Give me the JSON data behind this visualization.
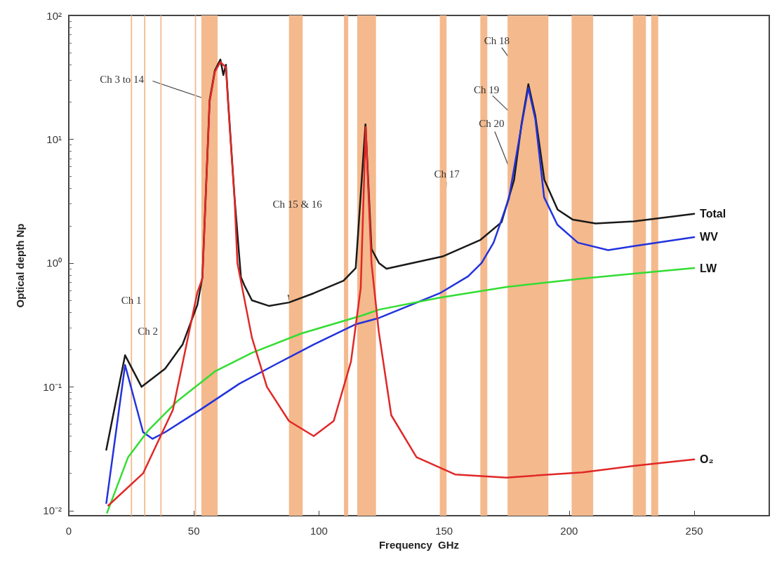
{
  "chart_data": {
    "type": "line",
    "xlabel": "Frequency  GHz",
    "ylabel": "Optical depth Np",
    "log": "y",
    "legend": false,
    "grid": false,
    "marker": "none",
    "line_style": "solid",
    "xlim": [
      0,
      280
    ],
    "xticks": [
      0,
      50,
      100,
      150,
      200,
      250
    ],
    "ylim": [
      0.0091,
      100
    ],
    "yticks": [
      {
        "value": 0.01,
        "label": "10⁻²"
      },
      {
        "value": 0.1,
        "label": "10⁻¹"
      },
      {
        "value": 1,
        "label": "10⁰"
      },
      {
        "value": 10,
        "label": "10¹"
      },
      {
        "value": 100,
        "label": "10²"
      }
    ],
    "series": [
      {
        "name": "Total",
        "color": "#1a1a1a",
        "x": [
          15,
          22.5,
          29.1,
          38.5,
          45.5,
          51.4,
          53.4,
          56.3,
          58.4,
          60.6,
          61.8,
          62.8,
          63.8,
          66.3,
          68.8,
          70.2,
          73.2,
          80.1,
          88,
          97.9,
          109.8,
          114.7,
          118.6,
          121,
          124,
          127,
          149.4,
          164.6,
          173,
          178,
          181,
          183.7,
          186.5,
          190.1,
          195.4,
          201.5,
          210.6,
          225.9,
          250
        ],
        "values": [
          0.031,
          0.18,
          0.1,
          0.14,
          0.22,
          0.46,
          0.77,
          20.7,
          36,
          44,
          33,
          40,
          18.9,
          3.3,
          0.77,
          0.66,
          0.5,
          0.45,
          0.48,
          0.57,
          0.72,
          0.91,
          13.2,
          1.3,
          1,
          0.9,
          1.13,
          1.54,
          2.14,
          4.7,
          13.4,
          27.8,
          15.4,
          4.7,
          2.7,
          2.24,
          2.09,
          2.17,
          2.5
        ]
      },
      {
        "name": "WV",
        "color": "#2233dd",
        "x": [
          15,
          22.5,
          29.7,
          33.5,
          38.5,
          52.4,
          68.2,
          83,
          98,
          114.7,
          124,
          148.3,
          159.6,
          165,
          169.8,
          175.9,
          181,
          183.7,
          186.5,
          190,
          195.3,
          203.5,
          215.6,
          225.9,
          250
        ],
        "values": [
          0.0115,
          0.15,
          0.043,
          0.038,
          0.043,
          0.065,
          0.106,
          0.153,
          0.22,
          0.32,
          0.36,
          0.57,
          0.78,
          1,
          1.46,
          3.3,
          13,
          26,
          14.5,
          3.4,
          2.04,
          1.46,
          1.27,
          1.37,
          1.62
        ]
      },
      {
        "name": "LW",
        "color": "#33dd33",
        "x": [
          15.3,
          23.7,
          31.6,
          43.5,
          58.4,
          73.2,
          93,
          117.8,
          123.9,
          148.3,
          175,
          205.4,
          225.9,
          250
        ],
        "values": [
          0.0096,
          0.027,
          0.044,
          0.077,
          0.133,
          0.188,
          0.27,
          0.38,
          0.42,
          0.525,
          0.64,
          0.75,
          0.82,
          0.91
        ]
      },
      {
        "name": "O₂",
        "color": "#e02828",
        "x": [
          15.8,
          29.7,
          41.6,
          51.4,
          53.4,
          56.3,
          58.4,
          60.6,
          62.8,
          63.8,
          66.3,
          67.4,
          73.2,
          79.2,
          88,
          97.9,
          105.9,
          112.8,
          116.7,
          118.7,
          119.5,
          121,
          123.9,
          128.9,
          139,
          154.4,
          175,
          205.4,
          225.9,
          250
        ],
        "values": [
          0.011,
          0.02,
          0.065,
          0.58,
          0.75,
          20,
          35,
          42,
          38,
          18,
          3.2,
          1,
          0.25,
          0.1,
          0.053,
          0.04,
          0.053,
          0.16,
          0.63,
          12.5,
          5,
          1,
          0.28,
          0.059,
          0.027,
          0.0196,
          0.0185,
          0.0204,
          0.023,
          0.0259
        ]
      }
    ],
    "bands": [
      {
        "axis": "x",
        "from": 24.8,
        "to": 25.3,
        "color": "#f4b98c"
      },
      {
        "axis": "x",
        "from": 30.1,
        "to": 30.6,
        "color": "#f4b98c"
      },
      {
        "axis": "x",
        "from": 36.6,
        "to": 37.1,
        "color": "#f4b98c"
      },
      {
        "axis": "x",
        "from": 50.4,
        "to": 50.9,
        "color": "#f4b98c"
      },
      {
        "axis": "x",
        "from": 53,
        "to": 59.5,
        "color": "#f4b98c"
      },
      {
        "axis": "x",
        "from": 88,
        "to": 93.5,
        "color": "#f4b98c"
      },
      {
        "axis": "x",
        "from": 110,
        "to": 111.7,
        "color": "#f4b98c"
      },
      {
        "axis": "x",
        "from": 115.3,
        "to": 122.8,
        "color": "#f4b98c"
      },
      {
        "axis": "x",
        "from": 148.3,
        "to": 151,
        "color": "#f4b98c"
      },
      {
        "axis": "x",
        "from": 164.5,
        "to": 167.3,
        "color": "#f4b98c"
      },
      {
        "axis": "x",
        "from": 175.4,
        "to": 191.7,
        "color": "#f4b98c"
      },
      {
        "axis": "x",
        "from": 201,
        "to": 209.6,
        "color": "#f4b98c"
      },
      {
        "axis": "x",
        "from": 225.5,
        "to": 230.7,
        "color": "#f4b98c"
      },
      {
        "axis": "x",
        "from": 232.8,
        "to": 235.6,
        "color": "#f4b98c"
      }
    ],
    "annotations": [
      {
        "text": "Ch 1",
        "x": 25,
        "y": 0.5
      },
      {
        "text": "Ch 2",
        "x": 31.6,
        "y": 0.28
      },
      {
        "text": "Ch 3 to 14",
        "x": 56.3,
        "y": 20.7
      },
      {
        "text": "Ch 15 & 16",
        "x": 88,
        "y": 0.48
      },
      {
        "text": "Ch 17",
        "x": 149.4,
        "y": 1.13
      },
      {
        "text": "Ch 18",
        "x": 183.7,
        "y": 27.8
      },
      {
        "text": "Ch 19",
        "x": 181,
        "y": 13.4
      },
      {
        "text": "Ch 20",
        "x": 178,
        "y": 4.7
      }
    ]
  }
}
